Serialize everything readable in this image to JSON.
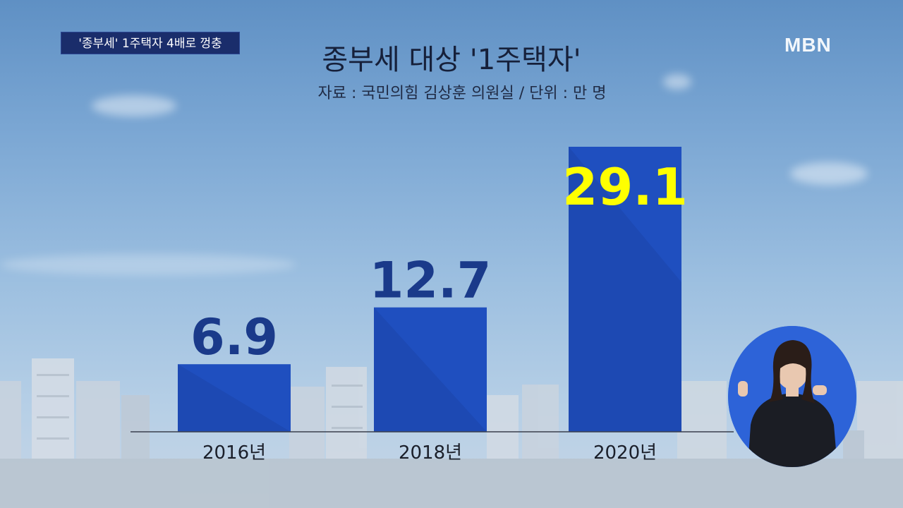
{
  "ticker": {
    "text": "'종부세' 1주택자 4배로 껑충"
  },
  "broadcaster": {
    "logo": "MBN"
  },
  "chart_data": {
    "type": "bar",
    "title": "종부세 대상 '1주택자'",
    "subtitle": "자료 : 국민의힘 김상훈 의원실 / 단위 : 만 명",
    "categories": [
      "2016년",
      "2018년",
      "2020년"
    ],
    "values": [
      6.9,
      12.7,
      29.1
    ],
    "value_labels": [
      "6.9",
      "12.7",
      "29.1"
    ],
    "highlight_index": 2,
    "ylim": [
      0,
      29.1
    ],
    "colors": {
      "bar": "#1f4fbf",
      "bar_dark": "#1a3f9e",
      "label": "#1a3a8a",
      "highlight_label": "#ffff00",
      "axis": "#3a3f4d",
      "category_text": "#1b1f2a"
    }
  },
  "sign_language_interpreter": {
    "icon": "sign-language-interpreter"
  }
}
